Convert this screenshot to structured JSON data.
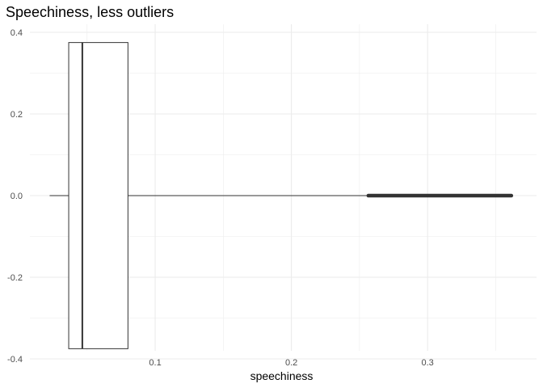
{
  "chart_data": {
    "type": "boxplot",
    "title": "Speechiness, less outliers",
    "xlabel": "speechiness",
    "ylabel": "",
    "xlim": [
      0.008,
      0.38
    ],
    "ylim": [
      -0.4,
      0.4
    ],
    "x_ticks": [
      0.1,
      0.2,
      0.3
    ],
    "x_tick_labels": [
      "0.1",
      "0.2",
      "0.3"
    ],
    "y_ticks": [
      -0.4,
      -0.2,
      0.0,
      0.2,
      0.4
    ],
    "y_tick_labels": [
      "-0.4",
      "-0.2",
      "0.0",
      "0.2",
      "0.4"
    ],
    "grid": true,
    "box": {
      "whisker_low": 0.0225,
      "q1": 0.0365,
      "median": 0.0465,
      "q3": 0.08,
      "whisker_high": 0.2565,
      "y_center": 0.0,
      "half_width": 0.375
    },
    "outliers_range": [
      0.2565,
      0.3615
    ],
    "colors": {
      "line": "#333333",
      "outlier": "#333333",
      "grid": "#ebebeb",
      "background": "#ffffff"
    }
  }
}
